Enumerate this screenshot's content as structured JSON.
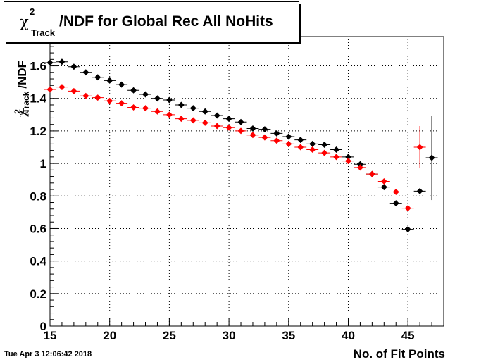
{
  "title": {
    "symbol": "χ",
    "superscript": "2",
    "subscript": "Track",
    "text": "/NDF for Global Rec All NoHits"
  },
  "timestamp": "Tue Apr  3 12:06:42 2018",
  "chart_data": {
    "type": "scatter",
    "xlabel": "No. of Fit Points",
    "ylabel": {
      "symbol": "χ",
      "superscript": "2",
      "subscript": "Track",
      "text": "/NDF"
    },
    "xlim": [
      15,
      48
    ],
    "ylim": [
      0,
      1.78
    ],
    "xticks": [
      15,
      20,
      25,
      30,
      35,
      40,
      45
    ],
    "yticks": [
      0,
      0.2,
      0.4,
      0.6,
      0.8,
      1,
      1.2,
      1.4,
      1.6
    ],
    "ytick_labels": [
      "0",
      "0.2",
      "0.4",
      "0.6",
      "0.8",
      "1",
      "1.2",
      "1.4",
      "1.6"
    ],
    "grid": true,
    "series": [
      {
        "color": "#000000",
        "x": [
          15,
          16,
          17,
          18,
          19,
          20,
          21,
          22,
          23,
          24,
          25,
          26,
          27,
          28,
          29,
          30,
          31,
          32,
          33,
          34,
          35,
          36,
          37,
          38,
          39,
          40,
          41,
          42,
          43,
          44,
          45,
          46,
          47
        ],
        "y": [
          1.62,
          1.625,
          1.595,
          1.56,
          1.53,
          1.51,
          1.485,
          1.45,
          1.425,
          1.4,
          1.39,
          1.36,
          1.34,
          1.32,
          1.295,
          1.275,
          1.255,
          1.215,
          1.21,
          1.185,
          1.165,
          1.145,
          1.12,
          1.115,
          1.085,
          1.04,
          0.995,
          0.935,
          0.855,
          0.755,
          0.595,
          0.83,
          1.035
        ],
        "yerr": [
          0,
          0,
          0,
          0,
          0,
          0,
          0,
          0,
          0,
          0,
          0,
          0,
          0,
          0,
          0,
          0,
          0,
          0,
          0,
          0,
          0,
          0,
          0,
          0,
          0,
          0,
          0,
          0,
          0,
          0,
          0,
          0.01,
          0.26
        ]
      },
      {
        "color": "#ff0000",
        "x": [
          15,
          16,
          17,
          18,
          19,
          20,
          21,
          22,
          23,
          24,
          25,
          26,
          27,
          28,
          29,
          30,
          31,
          32,
          33,
          34,
          35,
          36,
          37,
          38,
          39,
          40,
          41,
          42,
          43,
          44,
          45,
          46
        ],
        "y": [
          1.455,
          1.47,
          1.445,
          1.415,
          1.405,
          1.385,
          1.37,
          1.345,
          1.34,
          1.32,
          1.3,
          1.275,
          1.265,
          1.25,
          1.23,
          1.22,
          1.2,
          1.175,
          1.16,
          1.14,
          1.12,
          1.1,
          1.085,
          1.065,
          1.04,
          1.015,
          0.975,
          0.935,
          0.89,
          0.825,
          0.725,
          1.1
        ],
        "yerr": [
          0,
          0,
          0,
          0,
          0,
          0,
          0,
          0,
          0,
          0,
          0,
          0,
          0,
          0,
          0,
          0,
          0,
          0,
          0,
          0,
          0,
          0,
          0,
          0,
          0,
          0,
          0,
          0,
          0,
          0,
          0,
          0.13
        ]
      }
    ]
  }
}
